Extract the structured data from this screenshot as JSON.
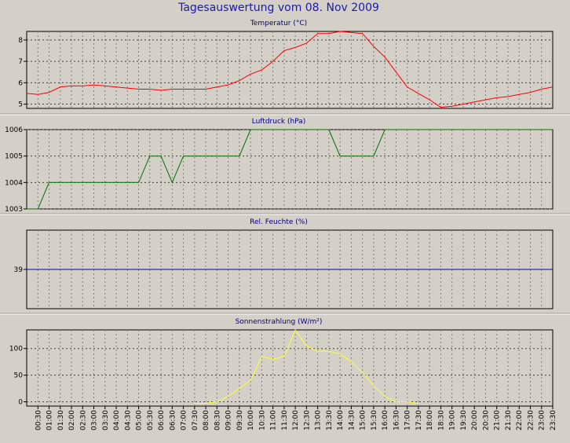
{
  "window": {
    "title": "Tagesauswertung vom 08. Nov 2009"
  },
  "colors": {
    "background": "#d4d0c8",
    "title": "#1a1aa8",
    "temperature": "#ff0000",
    "pressure": "#007000",
    "humidity": "#0000cc",
    "radiation": "#ffff33",
    "grid": "#808080"
  },
  "x_axis": {
    "ticks": [
      "00:30",
      "01:00",
      "01:30",
      "02:00",
      "02:30",
      "03:00",
      "03:30",
      "04:00",
      "04:30",
      "05:00",
      "05:30",
      "06:00",
      "06:30",
      "07:00",
      "07:30",
      "08:00",
      "08:30",
      "09:00",
      "09:30",
      "10:00",
      "10:30",
      "11:00",
      "11:30",
      "12:00",
      "12:30",
      "13:00",
      "13:30",
      "14:00",
      "14:30",
      "15:00",
      "15:30",
      "16:00",
      "16:30",
      "17:00",
      "17:30",
      "18:00",
      "18:30",
      "19:00",
      "19:30",
      "20:00",
      "20:30",
      "21:00",
      "21:30",
      "22:00",
      "22:30",
      "23:00",
      "23:30"
    ]
  },
  "chart_data": [
    {
      "type": "line",
      "title": "Temperatur (°C)",
      "ylim": [
        4.8,
        8.4
      ],
      "yticks": [
        5,
        6,
        7,
        8
      ],
      "grid": true,
      "series": [
        {
          "x": [
            0,
            0.5,
            1,
            1.5,
            2,
            2.5,
            3,
            3.5,
            4,
            4.5,
            5,
            5.5,
            6,
            6.5,
            7,
            7.5,
            8,
            8.5,
            9,
            9.5,
            10,
            10.5,
            11,
            11.5,
            12,
            12.5,
            13,
            13.5,
            14,
            14.5,
            15,
            15.5,
            16,
            16.5,
            17,
            17.5,
            18,
            18.5,
            19,
            19.5,
            20,
            20.5,
            21,
            21.5,
            22,
            22.5,
            23,
            23.5
          ],
          "values": [
            5.5,
            5.45,
            5.55,
            5.8,
            5.85,
            5.85,
            5.9,
            5.85,
            5.8,
            5.75,
            5.7,
            5.7,
            5.65,
            5.7,
            5.7,
            5.7,
            5.7,
            5.8,
            5.9,
            6.1,
            6.4,
            6.6,
            7.0,
            7.5,
            7.65,
            7.85,
            8.3,
            8.3,
            8.4,
            8.35,
            8.3,
            7.7,
            7.2,
            6.5,
            5.8,
            5.5,
            5.2,
            4.85,
            4.9,
            5.0,
            5.1,
            5.2,
            5.3,
            5.35,
            5.45,
            5.55,
            5.7,
            5.8
          ]
        }
      ]
    },
    {
      "type": "line",
      "title": "Luftdruck (hPa)",
      "ylim": [
        1003,
        1006
      ],
      "yticks": [
        1003,
        1004,
        1005,
        1006
      ],
      "grid": true,
      "series": [
        {
          "x": [
            0,
            0.5,
            1,
            1.5,
            2,
            2.5,
            3,
            3.5,
            4,
            4.5,
            5,
            5.5,
            6,
            6.5,
            7,
            7.5,
            8,
            8.5,
            9,
            9.5,
            10,
            10.5,
            11,
            11.5,
            12,
            12.5,
            13,
            13.5,
            14,
            14.5,
            15,
            15.5,
            16,
            16.5,
            17,
            17.5,
            18,
            18.5,
            19,
            19.5,
            20,
            20.5,
            21,
            21.5,
            22,
            22.5,
            23,
            23.5
          ],
          "values": [
            1003,
            1003,
            1004,
            1004,
            1004,
            1004,
            1004,
            1004,
            1004,
            1004,
            1004,
            1005,
            1005,
            1004,
            1005,
            1005,
            1005,
            1005,
            1005,
            1005,
            1006,
            1006,
            1006,
            1006,
            1006,
            1006,
            1006,
            1006,
            1005,
            1005,
            1005,
            1005,
            1006,
            1006,
            1006,
            1006,
            1006,
            1006,
            1006,
            1006,
            1006,
            1006,
            1006,
            1006,
            1006,
            1006,
            1006,
            1006
          ]
        }
      ]
    },
    {
      "type": "line",
      "title": "Rel. Feuchte (%)",
      "ylim": [
        29,
        49
      ],
      "yticks": [
        39
      ],
      "grid": true,
      "series": [
        {
          "x": [
            0,
            23.5
          ],
          "values": [
            39,
            39
          ]
        }
      ]
    },
    {
      "type": "line",
      "title": "Sonnenstrahlung (W/m²)",
      "ylim": [
        -8,
        135
      ],
      "yticks": [
        0,
        50,
        100
      ],
      "grid": true,
      "series": [
        {
          "x": [
            7.5,
            8,
            8.5,
            9,
            9.5,
            10,
            10.5,
            11,
            11.5,
            12,
            12.5,
            13,
            13.5,
            14,
            14.5,
            15,
            15.5,
            16,
            16.5,
            17,
            17.5
          ],
          "values": [
            -3,
            -3,
            0,
            10,
            25,
            40,
            85,
            80,
            85,
            135,
            105,
            95,
            95,
            90,
            75,
            55,
            30,
            10,
            0,
            0,
            -3
          ]
        }
      ]
    }
  ]
}
